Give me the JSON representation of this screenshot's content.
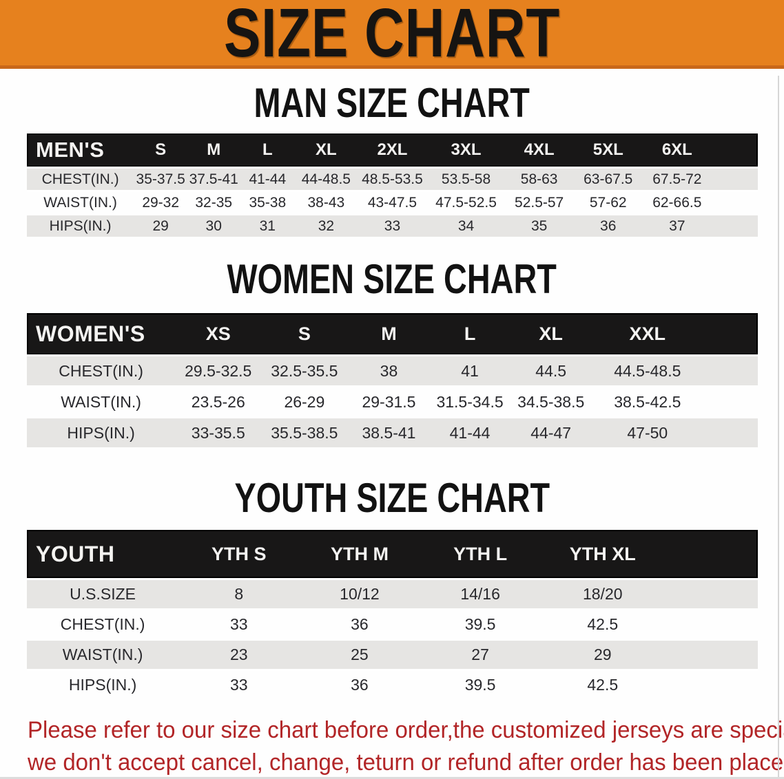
{
  "banner": {
    "title": "SIZE CHART",
    "bg_color": "#e6811e",
    "edge_color": "#c9681a"
  },
  "sections": {
    "men": {
      "title": "MAN SIZE CHART"
    },
    "women": {
      "title": "WOMEN SIZE CHART"
    },
    "youth": {
      "title": "YOUTH SIZE CHART"
    }
  },
  "tables": [
    {
      "id": "men",
      "label": "MEN'S",
      "sizes": [
        "S",
        "M",
        "L",
        "XL",
        "2XL",
        "3XL",
        "4XL",
        "5XL",
        "6XL"
      ],
      "rows": [
        {
          "label": "CHEST(IN.)",
          "values": [
            "35-37.5",
            "37.5-41",
            "41-44",
            "44-48.5",
            "48.5-53.5",
            "53.5-58",
            "58-63",
            "63-67.5",
            "67.5-72"
          ]
        },
        {
          "label": "WAIST(IN.)",
          "values": [
            "29-32",
            "32-35",
            "35-38",
            "38-43",
            "43-47.5",
            "47.5-52.5",
            "52.5-57",
            "57-62",
            "62-66.5"
          ]
        },
        {
          "label": "HIPS(IN.)",
          "values": [
            "29",
            "30",
            "31",
            "32",
            "33",
            "34",
            "35",
            "36",
            "37"
          ]
        }
      ]
    },
    {
      "id": "women",
      "label": "WOMEN'S",
      "sizes": [
        "XS",
        "S",
        "M",
        "L",
        "XL",
        "XXL"
      ],
      "rows": [
        {
          "label": "CHEST(IN.)",
          "values": [
            "29.5-32.5",
            "32.5-35.5",
            "38",
            "41",
            "44.5",
            "44.5-48.5"
          ]
        },
        {
          "label": "WAIST(IN.)",
          "values": [
            "23.5-26",
            "26-29",
            "29-31.5",
            "31.5-34.5",
            "34.5-38.5",
            "38.5-42.5"
          ]
        },
        {
          "label": "HIPS(IN.)",
          "values": [
            "33-35.5",
            "35.5-38.5",
            "38.5-41",
            "41-44",
            "44-47",
            "47-50"
          ]
        }
      ]
    },
    {
      "id": "youth",
      "label": "YOUTH",
      "sizes": [
        "YTH S",
        "YTH M",
        "YTH L",
        "YTH XL"
      ],
      "rows": [
        {
          "label": "U.S.SIZE",
          "values": [
            "8",
            "10/12",
            "14/16",
            "18/20"
          ]
        },
        {
          "label": "CHEST(IN.)",
          "values": [
            "33",
            "36",
            "39.5",
            "42.5"
          ]
        },
        {
          "label": "WAIST(IN.)",
          "values": [
            "23",
            "25",
            "27",
            "29"
          ]
        },
        {
          "label": "HIPS(IN.)",
          "values": [
            "33",
            "36",
            "39.5",
            "42.5"
          ]
        }
      ]
    }
  ],
  "notice": {
    "line1": "Please refer to our size chart before order,the customized jerseys are special products,",
    "line2": "we don't accept cancel, change, teturn or refund after order has been placed!",
    "color": "#b22527"
  }
}
